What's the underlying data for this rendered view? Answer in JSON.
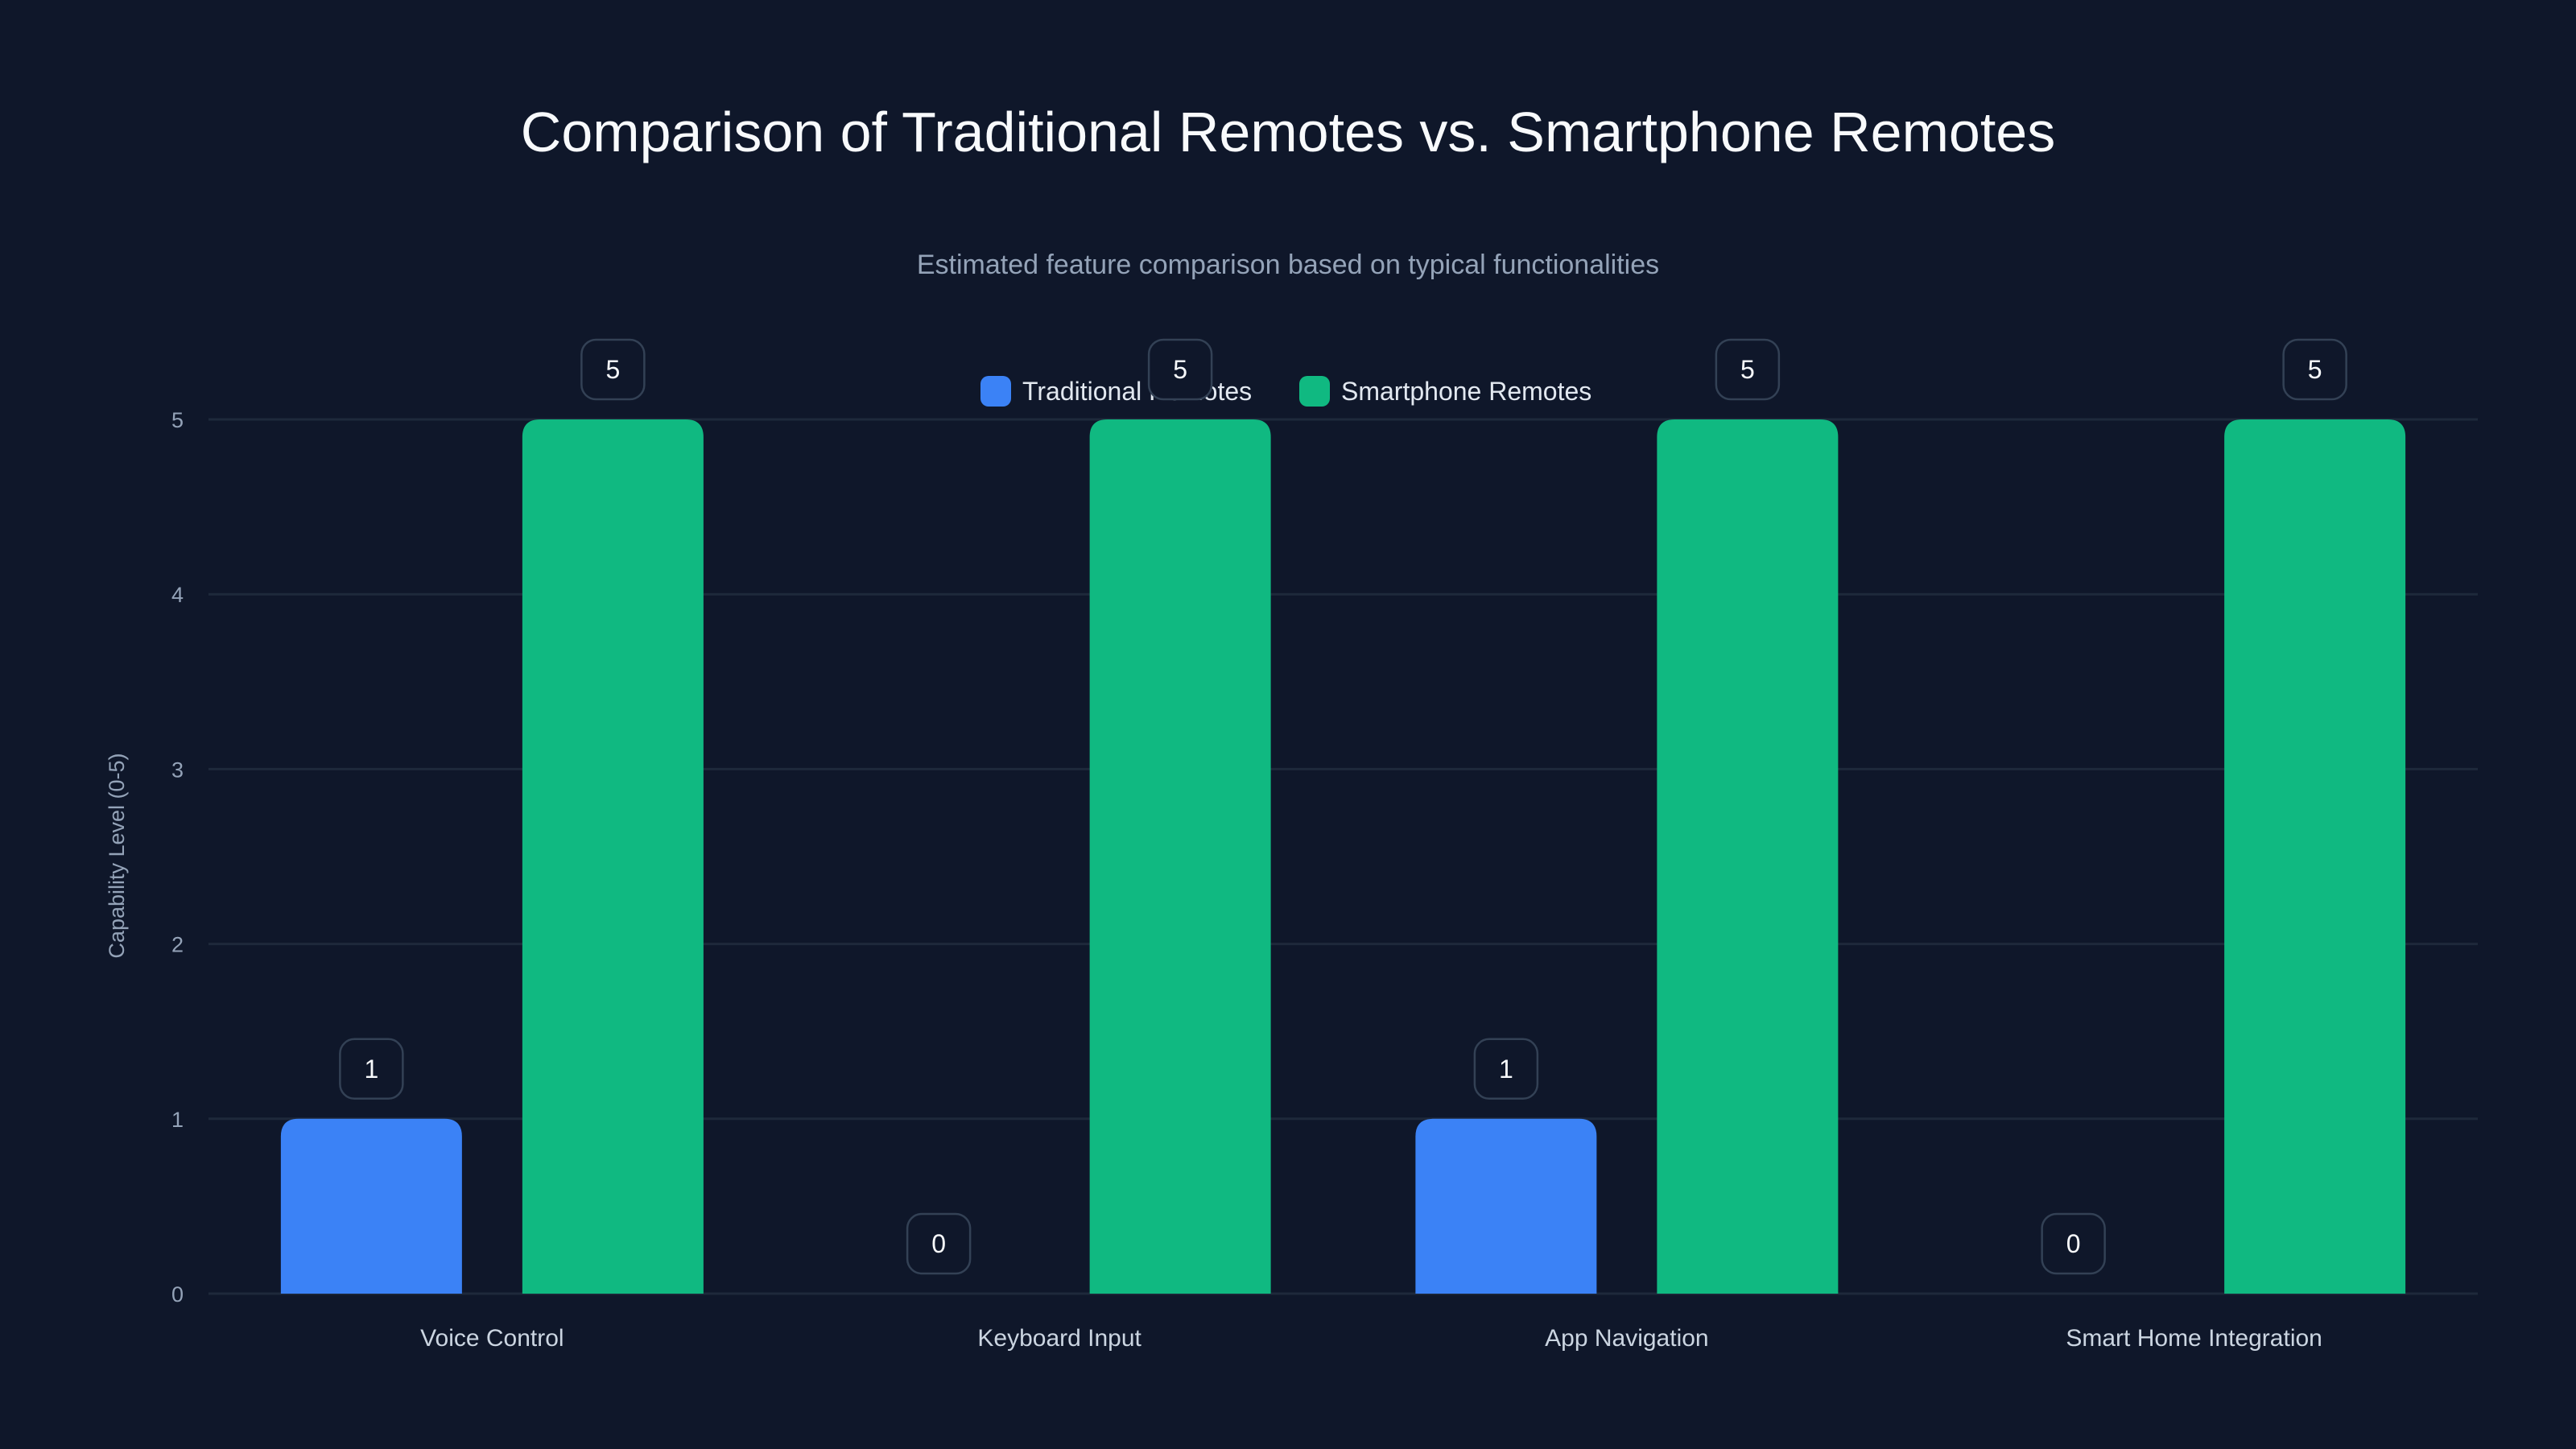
{
  "chart_data": {
    "type": "bar",
    "title": "Comparison of Traditional Remotes vs. Smartphone Remotes",
    "subtitle": "Estimated feature comparison based on typical functionalities",
    "xlabel": "",
    "ylabel": "Capability Level (0-5)",
    "ylim": [
      0,
      5
    ],
    "yticks": [
      "0",
      "1",
      "2",
      "3",
      "4",
      "5"
    ],
    "grid": true,
    "legend_position": "top-center",
    "categories": [
      "Voice Control",
      "Keyboard Input",
      "App Navigation",
      "Smart Home Integration"
    ],
    "series": [
      {
        "name": "Traditional Remotes",
        "color": "#3b82f6",
        "values": [
          1,
          0,
          1,
          0
        ]
      },
      {
        "name": "Smartphone Remotes",
        "color": "#10b981",
        "values": [
          5,
          5,
          5,
          5
        ]
      }
    ]
  },
  "colors": {
    "background": "#0f172a",
    "grid": "#1e293b",
    "text": "#e2e8f0",
    "muted": "#94a3b8"
  }
}
